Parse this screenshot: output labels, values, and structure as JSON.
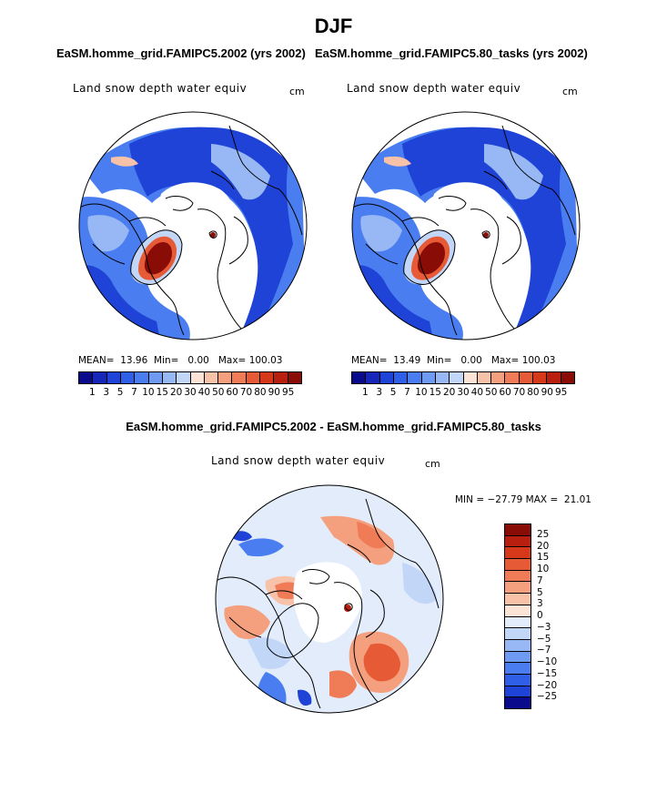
{
  "figure": {
    "title": "DJF"
  },
  "panels": [
    {
      "title": "EaSM.homme_grid.FAMIPC5.2002 (yrs 2002)",
      "variable": "Land snow depth water equiv",
      "units": "cm",
      "mean_label": "MEAN=",
      "mean": "13.96",
      "min_label": "Min=",
      "min": "0.00",
      "max_label": "Max=",
      "max": "100.03"
    },
    {
      "title": "EaSM.homme_grid.FAMIPC5.80_tasks (yrs 2002)",
      "variable": "Land snow depth water equiv",
      "units": "cm",
      "mean_label": "MEAN=",
      "mean": "13.49",
      "min_label": "Min=",
      "min": "0.00",
      "max_label": "Max=",
      "max": "100.03"
    }
  ],
  "abs_colorbar": {
    "levels": [
      "1",
      "3",
      "5",
      "7",
      "10",
      "15",
      "20",
      "30",
      "40",
      "50",
      "60",
      "70",
      "80",
      "90",
      "95"
    ],
    "colors": [
      "#0a0a8c",
      "#1626b8",
      "#1f43d6",
      "#2f5fe6",
      "#4a7ef0",
      "#6f9af2",
      "#97b8f5",
      "#c2d6f8",
      "#fbe3d6",
      "#f8c2a8",
      "#f4a07e",
      "#ef7c57",
      "#e65a35",
      "#d5391a",
      "#b81f0e",
      "#8a0c06"
    ]
  },
  "diff_panel": {
    "title": "EaSM.homme_grid.FAMIPC5.2002 - EaSM.homme_grid.FAMIPC5.80_tasks",
    "variable": "Land snow depth water equiv",
    "units": "cm",
    "minmax_text": "MIN = −27.79 MAX =  21.01",
    "colorbar_labels": [
      "25",
      "20",
      "15",
      "10",
      "7",
      "5",
      "3",
      "0",
      "−3",
      "−5",
      "−7",
      "−10",
      "−15",
      "−20",
      "−25"
    ],
    "colorbar_colors": [
      "#8a0c06",
      "#b81f0e",
      "#d5391a",
      "#e65a35",
      "#ef7c57",
      "#f4a07e",
      "#f8c2a8",
      "#fbe3d6",
      "#e3ecfa",
      "#c2d6f8",
      "#97b8f5",
      "#6f9af2",
      "#4a7ef0",
      "#2f5fe6",
      "#1f43d6",
      "#0a0a8c"
    ]
  },
  "colors": {
    "snow_deep_blue": "#1f43d6",
    "snow_mid_blue": "#4a7ef0",
    "snow_light_blue": "#97b8f5",
    "snow_max_red": "#8a0c06",
    "coastline": "#000000"
  }
}
